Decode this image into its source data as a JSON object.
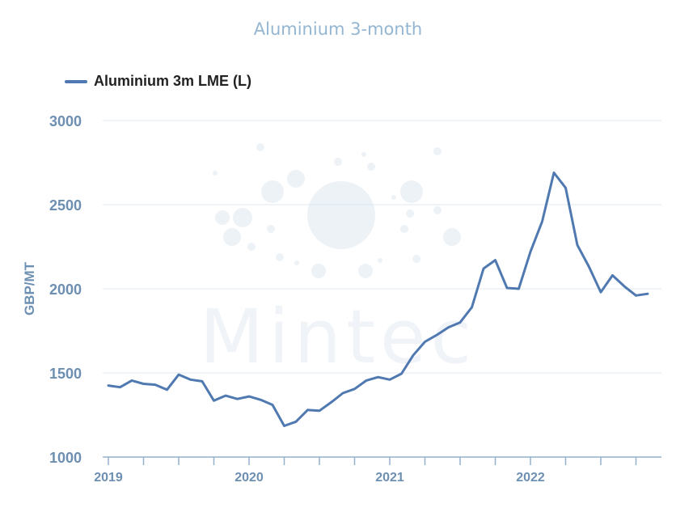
{
  "chart_data": {
    "type": "line",
    "title": "Aluminium 3-month",
    "ylabel": "GBP/MT",
    "xlabel": "",
    "ylim": [
      1000,
      3000
    ],
    "yticks": [
      1000,
      1500,
      2000,
      2500,
      3000
    ],
    "xtick_labels": [
      "2019",
      "2020",
      "2021",
      "2022"
    ],
    "x_range": [
      "2019-01",
      "2022-12"
    ],
    "grid": true,
    "legend_position": "top-left",
    "watermark": "Mintec",
    "series": [
      {
        "name": "Aluminium 3m LME (L)",
        "color": "#4f79b0",
        "x": [
          "2019-01",
          "2019-02",
          "2019-03",
          "2019-04",
          "2019-05",
          "2019-06",
          "2019-07",
          "2019-08",
          "2019-09",
          "2019-10",
          "2019-11",
          "2019-12",
          "2020-01",
          "2020-02",
          "2020-03",
          "2020-04",
          "2020-05",
          "2020-06",
          "2020-07",
          "2020-08",
          "2020-09",
          "2020-10",
          "2020-11",
          "2020-12",
          "2021-01",
          "2021-02",
          "2021-03",
          "2021-04",
          "2021-05",
          "2021-06",
          "2021-07",
          "2021-08",
          "2021-09",
          "2021-10",
          "2021-11",
          "2021-12",
          "2022-01",
          "2022-02",
          "2022-03",
          "2022-04",
          "2022-05",
          "2022-06",
          "2022-07",
          "2022-08",
          "2022-09",
          "2022-10",
          "2022-11"
        ],
        "values": [
          1425,
          1415,
          1455,
          1435,
          1430,
          1400,
          1490,
          1460,
          1450,
          1335,
          1365,
          1345,
          1360,
          1340,
          1310,
          1185,
          1210,
          1280,
          1275,
          1325,
          1380,
          1405,
          1455,
          1475,
          1460,
          1495,
          1605,
          1685,
          1725,
          1770,
          1800,
          1890,
          2120,
          2170,
          2005,
          2000,
          2220,
          2400,
          2690,
          2600,
          2260,
          2130,
          1980,
          2080,
          2015,
          1960,
          1970
        ]
      }
    ]
  }
}
